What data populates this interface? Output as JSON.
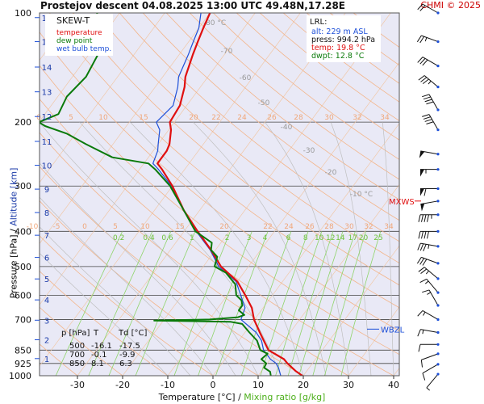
{
  "header": {
    "title": "Prostejov   descent   04.08.2025 13:00 UTC  49.48N,17.28E",
    "copyright": "CHMI © 2025"
  },
  "axes": {
    "x_title_temp": "Temperature [°C]",
    "x_title_sep": " / ",
    "x_title_mix": "Mixing ratio [g/kg]",
    "y_title_pressure": "Pressure [hPa]",
    "y_title_sep": "  /  ",
    "y_title_alt": "Altitude [km]"
  },
  "colors": {
    "temperature": "#e01010",
    "dewpoint": "#0a7a0a",
    "wetbulb": "#1d4fd8",
    "dry_adiabat": "#f3b58a",
    "moist_adiabat": "#bfbfbf",
    "mixing_ratio": "#8fd46a",
    "isobar": "#444444",
    "background": "#e9e9f6",
    "legend_bg": "#ffffff"
  },
  "legend": {
    "title": "SKEW-T",
    "items": [
      {
        "label": "temperature",
        "color": "#e01010"
      },
      {
        "label": "dew point",
        "color": "#0a7a0a"
      },
      {
        "label": "wet bulb temp.",
        "color": "#1d4fd8"
      }
    ]
  },
  "lrl": {
    "title": "LRL:",
    "lines": [
      {
        "text": "alt: 229 m ASL",
        "color": "#1d4fd8"
      },
      {
        "text": "press: 994.2 hPa",
        "color": "#111111"
      },
      {
        "text": "temp: 19.8 °C",
        "color": "#e01010"
      },
      {
        "text": "dwpt: 12.8 °C",
        "color": "#0a7a0a"
      }
    ]
  },
  "table": {
    "headers": [
      "p [hPa]",
      "T",
      "Td [°C]"
    ],
    "rows": [
      [
        "500",
        "-16.1",
        "-17.5"
      ],
      [
        "700",
        "-0.1",
        "-9.9"
      ],
      [
        "850",
        "8.1",
        "6.3"
      ]
    ]
  },
  "annotations": {
    "mxws": "MXWS",
    "wbzl": "WBZL"
  },
  "chart_data": {
    "type": "line",
    "skew_t": true,
    "xlabel": "Temperature [°C]",
    "ylabel": "Pressure [hPa]",
    "xlim": [
      -40,
      45
    ],
    "ylim": [
      1000,
      100
    ],
    "y_scale": "log",
    "x_ticks": [
      -30,
      -20,
      -10,
      0,
      10,
      20,
      30,
      40
    ],
    "pressure_ticks": [
      100,
      200,
      300,
      400,
      500,
      600,
      700,
      850,
      925,
      1000
    ],
    "altitude_ticks_km": [
      1,
      2,
      3,
      4,
      5,
      6,
      7,
      8,
      9,
      10,
      11,
      12,
      13,
      14,
      15,
      16
    ],
    "mixing_ratio_labels": [
      "0.2",
      "0.4",
      "0.6",
      "1",
      "2",
      "3",
      "4",
      "6",
      "8",
      "10",
      "12",
      "14",
      "17",
      "20",
      "25"
    ],
    "dry_adiabat_labels_top": [
      "-80 °C",
      "-70",
      "-60",
      "-50",
      "-40",
      "-30",
      "-20",
      "-10 °C"
    ],
    "isotherm_labels_200": [
      "0",
      "5",
      "10",
      "15",
      "20",
      "22",
      "24",
      "26",
      "28",
      "30",
      "32",
      "34"
    ],
    "isotherm_labels_400": [
      "-10",
      "-5",
      "0",
      "5",
      "10",
      "15",
      "20",
      "22",
      "24",
      "26",
      "28",
      "30",
      "32",
      "34"
    ],
    "series": [
      {
        "name": "temperature",
        "points": [
          [
            1000,
            19.8
          ],
          [
            970,
            17.5
          ],
          [
            925,
            14.5
          ],
          [
            900,
            13
          ],
          [
            850,
            8.1
          ],
          [
            800,
            5.5
          ],
          [
            760,
            3.3
          ],
          [
            700,
            -0.1
          ],
          [
            650,
            -2.5
          ],
          [
            600,
            -6
          ],
          [
            550,
            -10
          ],
          [
            500,
            -16.1
          ],
          [
            450,
            -21
          ],
          [
            400,
            -27
          ],
          [
            350,
            -33.5
          ],
          [
            300,
            -40
          ],
          [
            270,
            -45
          ],
          [
            260,
            -47
          ],
          [
            240,
            -47
          ],
          [
            230,
            -47.5
          ],
          [
            210,
            -49.5
          ],
          [
            200,
            -51
          ],
          [
            180,
            -51.5
          ],
          [
            160,
            -53.5
          ],
          [
            150,
            -55
          ],
          [
            130,
            -57
          ],
          [
            120,
            -58
          ],
          [
            110,
            -59
          ],
          [
            100,
            -60
          ]
        ]
      },
      {
        "name": "dew point",
        "points": [
          [
            1000,
            12.8
          ],
          [
            975,
            12
          ],
          [
            950,
            10
          ],
          [
            925,
            9.8
          ],
          [
            900,
            8
          ],
          [
            870,
            8.5
          ],
          [
            850,
            6.3
          ],
          [
            800,
            4
          ],
          [
            760,
            1
          ],
          [
            720,
            -2
          ],
          [
            710,
            -5
          ],
          [
            705,
            -22
          ],
          [
            700,
            -9.9
          ],
          [
            690,
            -4
          ],
          [
            680,
            -3
          ],
          [
            660,
            -5
          ],
          [
            640,
            -5
          ],
          [
            620,
            -6
          ],
          [
            600,
            -8
          ],
          [
            560,
            -10
          ],
          [
            520,
            -14
          ],
          [
            500,
            -17.5
          ],
          [
            470,
            -18.5
          ],
          [
            450,
            -21
          ],
          [
            430,
            -22
          ],
          [
            400,
            -27.5
          ],
          [
            350,
            -33.5
          ],
          [
            300,
            -40.5
          ],
          [
            270,
            -46.5
          ],
          [
            260,
            -49
          ],
          [
            250,
            -58
          ],
          [
            230,
            -66
          ],
          [
            215,
            -72
          ],
          [
            205,
            -78
          ],
          [
            200,
            -80
          ],
          [
            190,
            -77
          ],
          [
            170,
            -78
          ],
          [
            150,
            -77
          ],
          [
            130,
            -78
          ],
          [
            115,
            -81
          ],
          [
            100,
            -85
          ]
        ]
      },
      {
        "name": "wet bulb temp.",
        "points": [
          [
            1000,
            15
          ],
          [
            950,
            13.2
          ],
          [
            925,
            12
          ],
          [
            900,
            10
          ],
          [
            850,
            7
          ],
          [
            800,
            5
          ],
          [
            760,
            2.5
          ],
          [
            700,
            -3
          ],
          [
            650,
            -4
          ],
          [
            600,
            -7
          ],
          [
            550,
            -10.3
          ],
          [
            500,
            -16.6
          ],
          [
            450,
            -21.2
          ],
          [
            400,
            -27.3
          ],
          [
            350,
            -33.6
          ],
          [
            300,
            -40.2
          ],
          [
            270,
            -45.8
          ],
          [
            260,
            -48
          ],
          [
            240,
            -49
          ],
          [
            230,
            -50
          ],
          [
            210,
            -52
          ],
          [
            200,
            -54
          ],
          [
            180,
            -53
          ],
          [
            160,
            -55
          ],
          [
            150,
            -56.5
          ],
          [
            130,
            -58
          ],
          [
            120,
            -59
          ],
          [
            110,
            -60
          ],
          [
            100,
            -62
          ]
        ]
      }
    ],
    "wind_barbs": [
      {
        "p": 100,
        "dir": 300,
        "spd": 20
      },
      {
        "p": 120,
        "dir": 290,
        "spd": 25
      },
      {
        "p": 140,
        "dir": 300,
        "spd": 30
      },
      {
        "p": 160,
        "dir": 310,
        "spd": 35
      },
      {
        "p": 185,
        "dir": 330,
        "spd": 40
      },
      {
        "p": 210,
        "dir": 330,
        "spd": 40
      },
      {
        "p": 245,
        "dir": 280,
        "spd": 50
      },
      {
        "p": 270,
        "dir": 270,
        "spd": 55
      },
      {
        "p": 305,
        "dir": 270,
        "spd": 60
      },
      {
        "p": 330,
        "dir": 260,
        "spd": 50
      },
      {
        "p": 360,
        "dir": 270,
        "spd": 45
      },
      {
        "p": 400,
        "dir": 270,
        "spd": 40
      },
      {
        "p": 440,
        "dir": 280,
        "spd": 35
      },
      {
        "p": 490,
        "dir": 290,
        "spd": 30
      },
      {
        "p": 540,
        "dir": 310,
        "spd": 25
      },
      {
        "p": 590,
        "dir": 320,
        "spd": 15
      },
      {
        "p": 640,
        "dir": 330,
        "spd": 15
      },
      {
        "p": 700,
        "dir": 300,
        "spd": 15
      },
      {
        "p": 760,
        "dir": 280,
        "spd": 15
      },
      {
        "p": 820,
        "dir": 270,
        "spd": 10
      },
      {
        "p": 870,
        "dir": 250,
        "spd": 10
      },
      {
        "p": 930,
        "dir": 240,
        "spd": 10
      },
      {
        "p": 990,
        "dir": 220,
        "spd": 5
      }
    ]
  }
}
